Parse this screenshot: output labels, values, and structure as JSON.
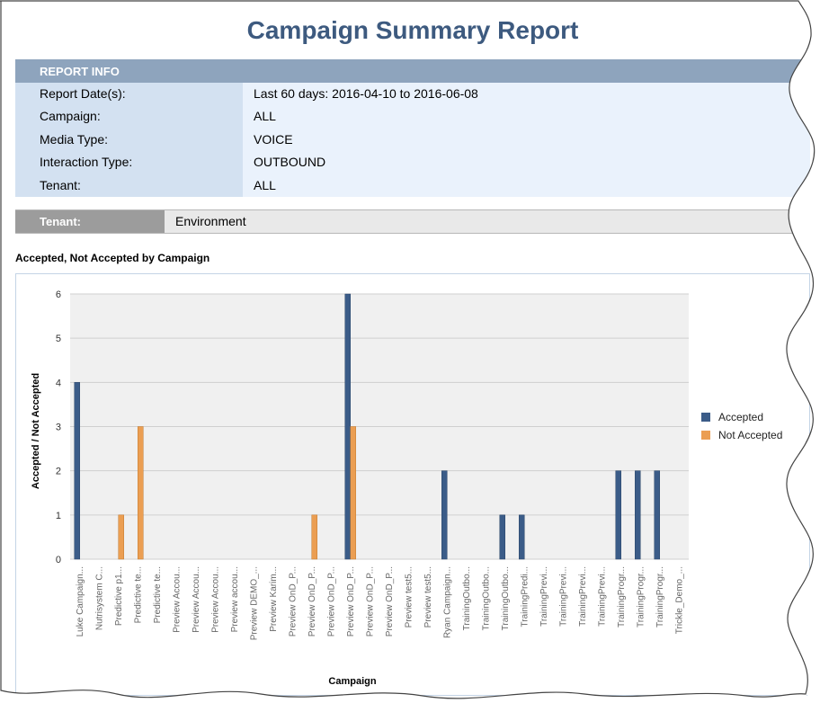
{
  "report": {
    "title": "Campaign Summary Report",
    "info_header": "REPORT INFO",
    "info_rows": [
      {
        "label": "Report Date(s):",
        "value": "Last 60 days: 2016-04-10 to 2016-06-08"
      },
      {
        "label": "Campaign:",
        "value": "ALL"
      },
      {
        "label": "Media Type:",
        "value": "VOICE"
      },
      {
        "label": "Interaction Type:",
        "value": "OUTBOUND"
      },
      {
        "label": "Tenant:",
        "value": "ALL"
      }
    ],
    "tenant_label": "Tenant:",
    "tenant_value": "Environment",
    "chart_heading": "Accepted, Not Accepted by Campaign"
  },
  "colors": {
    "accepted": "#3b5c88",
    "not_accepted": "#eb9e52",
    "title": "#3d5a7f"
  },
  "chart_data": {
    "type": "bar",
    "title": "Accepted, Not Accepted by Campaign",
    "xlabel": "Campaign",
    "ylabel": "Accepted / Not Accepted",
    "ylim": [
      0,
      6
    ],
    "yticks": [
      0,
      1,
      2,
      3,
      4,
      5,
      6
    ],
    "grid": true,
    "legend_position": "right",
    "categories": [
      "Luke Campaign...",
      "Nutrisystem C...",
      "Predictive p1...",
      "Predictive te...",
      "Predictive te...",
      "Preview Accou...",
      "Preview Accou...",
      "Preview Accou...",
      "Preview accou...",
      "Preview DEMO_...",
      "Preview Karim...",
      "Preview OnD_P...",
      "Preview OnD_P...",
      "Preview OnD_P...",
      "Preview OnD_P...",
      "Preview OnD_P...",
      "Preview OnD_P...",
      "Preview test5...",
      "Preview test5...",
      "Ryan Campaign...",
      "TrainingOutbo...",
      "TrainingOutbo...",
      "TrainingOutbo...",
      "TrainingPredi...",
      "TrainingPrevi...",
      "TrainingPrevi...",
      "TrainingPrevi...",
      "TrainingPrevi...",
      "TrainingProgr...",
      "TrainingProgr...",
      "TrainingProgr...",
      "Trickle_Demo_..."
    ],
    "series": [
      {
        "name": "Accepted",
        "values": [
          4,
          0,
          0,
          0,
          0,
          0,
          0,
          0,
          0,
          0,
          0,
          0,
          0,
          0,
          6,
          0,
          0,
          0,
          0,
          2,
          0,
          0,
          1,
          1,
          0,
          0,
          0,
          0,
          2,
          2,
          2,
          0
        ]
      },
      {
        "name": "Not Accepted",
        "values": [
          0,
          0,
          1,
          3,
          0,
          0,
          0,
          0,
          0,
          0,
          0,
          0,
          1,
          0,
          3,
          0,
          0,
          0,
          0,
          0,
          0,
          0,
          0,
          0,
          0,
          0,
          0,
          0,
          0,
          0,
          0,
          0
        ]
      }
    ]
  }
}
